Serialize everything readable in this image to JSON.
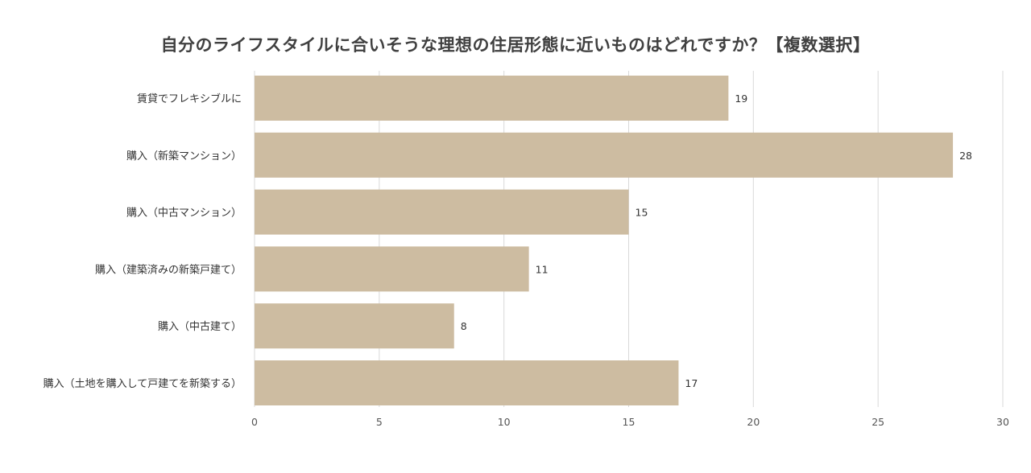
{
  "chart_data": {
    "type": "bar",
    "orientation": "horizontal",
    "title": "自分のライフスタイルに合いそうな理想の住居形態に近いものはどれですか？【複数選択】",
    "categories": [
      "賃貸でフレキシブルに",
      "購入（新築マンション）",
      "購入（中古マンション）",
      "購入（建築済みの新築戸建て）",
      "購入（中古建て）",
      "購入（土地を購入して戸建てを新築する）"
    ],
    "values": [
      19,
      28,
      15,
      11,
      8,
      17
    ],
    "xlim": [
      0,
      30
    ],
    "ticks": [
      0,
      5,
      10,
      15,
      20,
      25,
      30
    ],
    "grid": true,
    "legend": "none",
    "bar_color": "#cdbca1",
    "grid_color": "#d9d9d9"
  }
}
